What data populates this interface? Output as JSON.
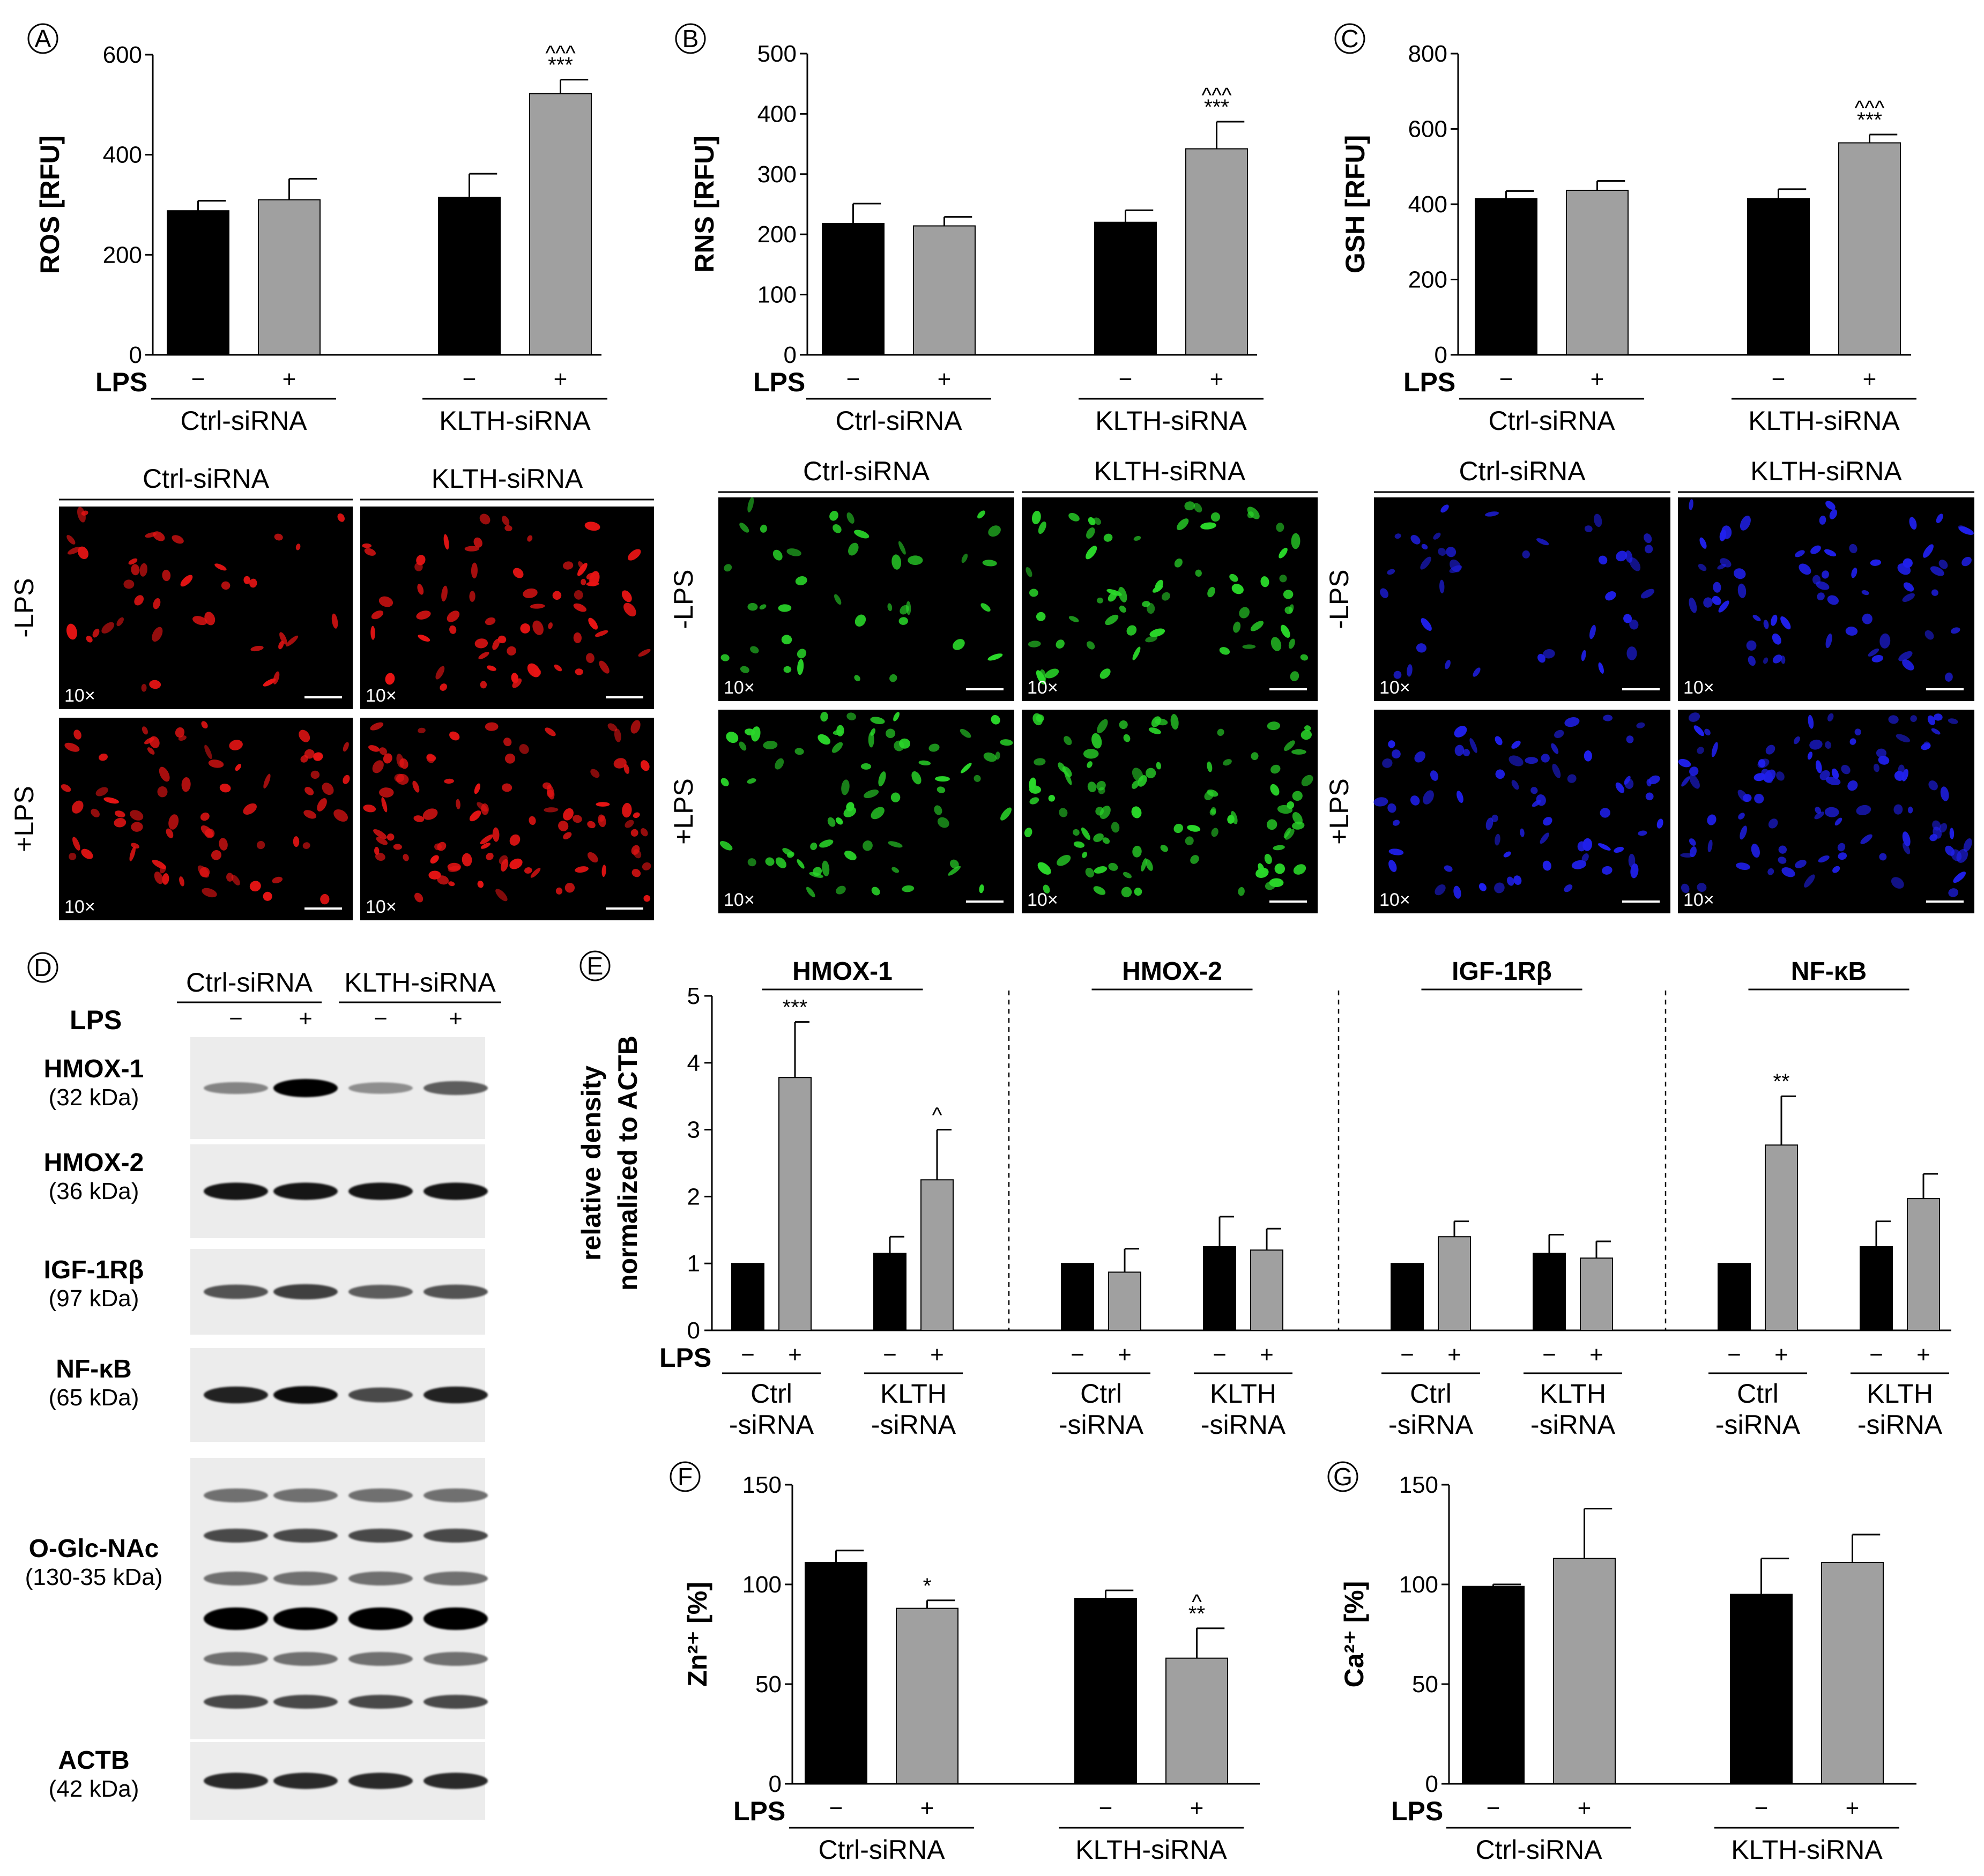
{
  "chart_data": [
    {
      "id": "A",
      "panel_letter": "A",
      "type": "bar",
      "ylabel": "ROS [RFU]",
      "ylim": [
        0,
        600
      ],
      "yticks": [
        0,
        200,
        400,
        600
      ],
      "lps_label": "LPS",
      "groups": [
        {
          "label": "Ctrl-siRNA",
          "bars": [
            {
              "lps": "−",
              "value": 288,
              "err": 20,
              "color": "#000000",
              "sig": ""
            },
            {
              "lps": "+",
              "value": 310,
              "err": 42,
              "color": "#a0a0a0",
              "sig": ""
            }
          ]
        },
        {
          "label": "KLTH-siRNA",
          "bars": [
            {
              "lps": "−",
              "value": 315,
              "err": 47,
              "color": "#000000",
              "sig": ""
            },
            {
              "lps": "+",
              "value": 522,
              "err": 28,
              "color": "#a0a0a0",
              "sig": "***",
              "sig2": "^^^"
            }
          ]
        }
      ]
    },
    {
      "id": "B",
      "panel_letter": "B",
      "type": "bar",
      "ylabel": "RNS [RFU]",
      "ylim": [
        0,
        500
      ],
      "yticks": [
        0,
        100,
        200,
        300,
        400,
        500
      ],
      "lps_label": "LPS",
      "groups": [
        {
          "label": "Ctrl-siRNA",
          "bars": [
            {
              "lps": "−",
              "value": 218,
              "err": 33,
              "color": "#000000",
              "sig": ""
            },
            {
              "lps": "+",
              "value": 214,
              "err": 15,
              "color": "#a0a0a0",
              "sig": ""
            }
          ]
        },
        {
          "label": "KLTH-siRNA",
          "bars": [
            {
              "lps": "−",
              "value": 220,
              "err": 20,
              "color": "#000000",
              "sig": ""
            },
            {
              "lps": "+",
              "value": 342,
              "err": 45,
              "color": "#a0a0a0",
              "sig": "***",
              "sig2": "^^^"
            }
          ]
        }
      ]
    },
    {
      "id": "C",
      "panel_letter": "C",
      "type": "bar",
      "ylabel": "GSH [RFU]",
      "ylim": [
        0,
        800
      ],
      "yticks": [
        0,
        200,
        400,
        600,
        800
      ],
      "lps_label": "LPS",
      "groups": [
        {
          "label": "Ctrl-siRNA",
          "bars": [
            {
              "lps": "−",
              "value": 415,
              "err": 20,
              "color": "#000000",
              "sig": ""
            },
            {
              "lps": "+",
              "value": 437,
              "err": 25,
              "color": "#a0a0a0",
              "sig": ""
            }
          ]
        },
        {
          "label": "KLTH-siRNA",
          "bars": [
            {
              "lps": "−",
              "value": 415,
              "err": 25,
              "color": "#000000",
              "sig": ""
            },
            {
              "lps": "+",
              "value": 563,
              "err": 22,
              "color": "#a0a0a0",
              "sig": "***",
              "sig2": "^^^"
            }
          ]
        }
      ]
    },
    {
      "id": "E",
      "panel_letter": "E",
      "type": "bar",
      "ylabel": "relative density",
      "ylabel2": "normalized to ACTB",
      "ylim": [
        0,
        5
      ],
      "yticks": [
        0,
        1,
        2,
        3,
        4,
        5
      ],
      "lps_label": "LPS",
      "proteins": [
        {
          "name": "HMOX-1",
          "groups": [
            {
              "label1": "Ctrl",
              "label2": "-siRNA",
              "bars": [
                {
                  "lps": "−",
                  "value": 1.0,
                  "err": 0,
                  "color": "#000000",
                  "sig": ""
                },
                {
                  "lps": "+",
                  "value": 3.78,
                  "err": 0.83,
                  "color": "#a0a0a0",
                  "sig": "***"
                }
              ]
            },
            {
              "label1": "KLTH",
              "label2": "-siRNA",
              "bars": [
                {
                  "lps": "−",
                  "value": 1.15,
                  "err": 0.25,
                  "color": "#000000",
                  "sig": ""
                },
                {
                  "lps": "+",
                  "value": 2.25,
                  "err": 0.75,
                  "color": "#a0a0a0",
                  "sig": "^"
                }
              ]
            }
          ]
        },
        {
          "name": "HMOX-2",
          "groups": [
            {
              "label1": "Ctrl",
              "label2": "-siRNA",
              "bars": [
                {
                  "lps": "−",
                  "value": 1.0,
                  "err": 0,
                  "color": "#000000",
                  "sig": ""
                },
                {
                  "lps": "+",
                  "value": 0.87,
                  "err": 0.35,
                  "color": "#a0a0a0",
                  "sig": ""
                }
              ]
            },
            {
              "label1": "KLTH",
              "label2": "-siRNA",
              "bars": [
                {
                  "lps": "−",
                  "value": 1.25,
                  "err": 0.45,
                  "color": "#000000",
                  "sig": ""
                },
                {
                  "lps": "+",
                  "value": 1.2,
                  "err": 0.32,
                  "color": "#a0a0a0",
                  "sig": ""
                }
              ]
            }
          ]
        },
        {
          "name": "IGF-1Rβ",
          "groups": [
            {
              "label1": "Ctrl",
              "label2": "-siRNA",
              "bars": [
                {
                  "lps": "−",
                  "value": 1.0,
                  "err": 0,
                  "color": "#000000",
                  "sig": ""
                },
                {
                  "lps": "+",
                  "value": 1.4,
                  "err": 0.23,
                  "color": "#a0a0a0",
                  "sig": ""
                }
              ]
            },
            {
              "label1": "KLTH",
              "label2": "-siRNA",
              "bars": [
                {
                  "lps": "−",
                  "value": 1.15,
                  "err": 0.28,
                  "color": "#000000",
                  "sig": ""
                },
                {
                  "lps": "+",
                  "value": 1.08,
                  "err": 0.25,
                  "color": "#a0a0a0",
                  "sig": ""
                }
              ]
            }
          ]
        },
        {
          "name": "NF-κB",
          "groups": [
            {
              "label1": "Ctrl",
              "label2": "-siRNA",
              "bars": [
                {
                  "lps": "−",
                  "value": 1.0,
                  "err": 0,
                  "color": "#000000",
                  "sig": ""
                },
                {
                  "lps": "+",
                  "value": 2.77,
                  "err": 0.73,
                  "color": "#a0a0a0",
                  "sig": "**"
                }
              ]
            },
            {
              "label1": "KLTH",
              "label2": "-siRNA",
              "bars": [
                {
                  "lps": "−",
                  "value": 1.25,
                  "err": 0.38,
                  "color": "#000000",
                  "sig": ""
                },
                {
                  "lps": "+",
                  "value": 1.97,
                  "err": 0.37,
                  "color": "#a0a0a0",
                  "sig": ""
                }
              ]
            }
          ]
        }
      ]
    },
    {
      "id": "F",
      "panel_letter": "F",
      "type": "bar",
      "ylabel": "Zn²⁺ [%]",
      "ylim": [
        0,
        150
      ],
      "yticks": [
        0,
        50,
        100,
        150
      ],
      "lps_label": "LPS",
      "groups": [
        {
          "label": "Ctrl-siRNA",
          "bars": [
            {
              "lps": "−",
              "value": 111,
              "err": 6,
              "color": "#000000",
              "sig": ""
            },
            {
              "lps": "+",
              "value": 88,
              "err": 4,
              "color": "#a0a0a0",
              "sig": "*"
            }
          ]
        },
        {
          "label": "KLTH-siRNA",
          "bars": [
            {
              "lps": "−",
              "value": 93,
              "err": 4,
              "color": "#000000",
              "sig": ""
            },
            {
              "lps": "+",
              "value": 63,
              "err": 15,
              "color": "#a0a0a0",
              "sig": "**",
              "sig2": "^"
            }
          ]
        }
      ]
    },
    {
      "id": "G",
      "panel_letter": "G",
      "type": "bar",
      "ylabel": "Ca²⁺ [%]",
      "ylim": [
        0,
        150
      ],
      "yticks": [
        0,
        50,
        100,
        150
      ],
      "lps_label": "LPS",
      "groups": [
        {
          "label": "Ctrl-siRNA",
          "bars": [
            {
              "lps": "−",
              "value": 99,
              "err": 1,
              "color": "#000000",
              "sig": ""
            },
            {
              "lps": "+",
              "value": 113,
              "err": 25,
              "color": "#a0a0a0",
              "sig": ""
            }
          ]
        },
        {
          "label": "KLTH-siRNA",
          "bars": [
            {
              "lps": "−",
              "value": 95,
              "err": 18,
              "color": "#000000",
              "sig": ""
            },
            {
              "lps": "+",
              "value": 111,
              "err": 14,
              "color": "#a0a0a0",
              "sig": ""
            }
          ]
        }
      ]
    }
  ],
  "microscopy": [
    {
      "panel": "A",
      "color": "#e81414",
      "col_labels": [
        "Ctrl-siRNA",
        "KLTH-siRNA"
      ],
      "row_labels": [
        "-LPS",
        "+LPS"
      ],
      "magnification": "10×"
    },
    {
      "panel": "B",
      "color": "#2ad82a",
      "col_labels": [
        "Ctrl-siRNA",
        "KLTH-siRNA"
      ],
      "row_labels": [
        "-LPS",
        "+LPS"
      ],
      "magnification": "10×"
    },
    {
      "panel": "C",
      "color": "#2020ee",
      "col_labels": [
        "Ctrl-siRNA",
        "KLTH-siRNA"
      ],
      "row_labels": [
        "-LPS",
        "+LPS"
      ],
      "magnification": "10×"
    }
  ],
  "western_blot": {
    "panel_letter": "D",
    "group_labels": [
      "Ctrl-siRNA",
      "KLTH-siRNA"
    ],
    "lps_label": "LPS",
    "lps_signs": [
      "−",
      "+",
      "−",
      "+"
    ],
    "rows": [
      {
        "name": "HMOX-1",
        "kda": "(32 kDa)",
        "intensity": [
          0.35,
          1.0,
          0.3,
          0.55
        ]
      },
      {
        "name": "HMOX-2",
        "kda": "(36 kDa)",
        "intensity": [
          0.9,
          0.9,
          0.9,
          0.9
        ]
      },
      {
        "name": "IGF-1Rβ",
        "kda": "(97 kDa)",
        "intensity": [
          0.6,
          0.7,
          0.55,
          0.6
        ]
      },
      {
        "name": "NF-κB",
        "kda": "(65 kDa)",
        "intensity": [
          0.85,
          0.95,
          0.65,
          0.85
        ]
      },
      {
        "name": "O-Glc-NAc",
        "kda": "(130-35 kDa)",
        "intensity": [
          0.8,
          0.8,
          0.8,
          0.8
        ]
      },
      {
        "name": "ACTB",
        "kda": "(42 kDa)",
        "intensity": [
          0.8,
          0.8,
          0.8,
          0.8
        ]
      }
    ]
  }
}
